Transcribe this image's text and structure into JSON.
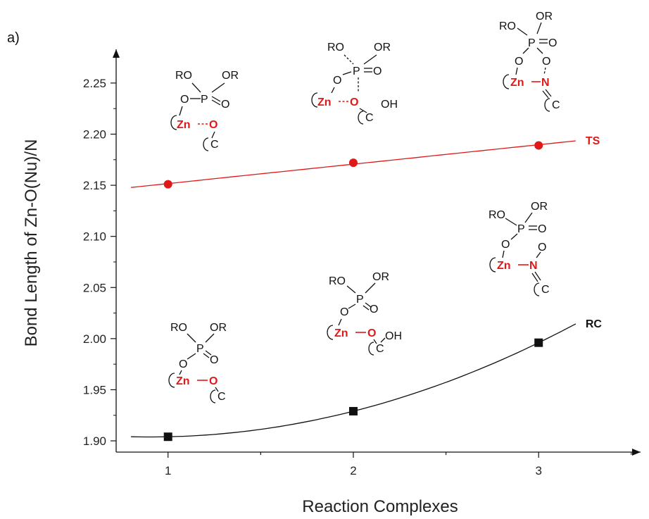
{
  "panel_label": "a)",
  "chart_data": {
    "type": "scatter",
    "xlabel": "Reaction Complexes",
    "ylabel": "Bond Length of Zn-O(Nu)/N",
    "xlim": [
      0.72,
      3.55
    ],
    "ylim": [
      1.889,
      2.283
    ],
    "x_ticks": [
      "1",
      "2",
      "3"
    ],
    "y_ticks": [
      "1.90",
      "1.95",
      "2.00",
      "2.05",
      "2.10",
      "2.15",
      "2.20",
      "2.25"
    ],
    "series": [
      {
        "name": "TS",
        "color": "#e01818",
        "marker": "circle",
        "x": [
          1,
          2,
          3
        ],
        "y": [
          2.151,
          2.172,
          2.189
        ],
        "fit": "linear",
        "fit_range": [
          0.8,
          3.2
        ]
      },
      {
        "name": "RC",
        "color": "#111111",
        "marker": "square",
        "x": [
          1,
          2,
          3
        ],
        "y": [
          1.904,
          1.929,
          1.996
        ],
        "fit": "quadratic",
        "fit_range": [
          0.8,
          3.2
        ]
      }
    ]
  },
  "structures": {
    "ts1": {
      "ro": "RO",
      "or": "OR",
      "p": "P",
      "o_top": "O",
      "o_left": "O",
      "zn": "Zn",
      "o_nu": "O",
      "c": "C"
    },
    "ts2": {
      "ro": "RO",
      "or": "OR",
      "p": "P",
      "o_top": "O",
      "o_left": "O",
      "zn": "Zn",
      "o_nu": "O",
      "c": "C",
      "oh": "OH"
    },
    "ts3": {
      "ro": "RO",
      "or": "OR",
      "p": "P",
      "o_top": "O",
      "o_left": "O",
      "o_right": "O",
      "zn": "Zn",
      "n": "N",
      "c": "C"
    },
    "rc1": {
      "ro": "RO",
      "or": "OR",
      "p": "P",
      "o_top": "O",
      "o_left": "O",
      "zn": "Zn",
      "o_nu": "O",
      "c": "C"
    },
    "rc2": {
      "ro": "RO",
      "or": "OR",
      "p": "P",
      "o_top": "O",
      "o_left": "O",
      "zn": "Zn",
      "o_nu": "O",
      "c": "C",
      "oh": "OH"
    },
    "rc3": {
      "ro": "RO",
      "or": "OR",
      "p": "P",
      "o_top": "O",
      "o_left": "O",
      "zn": "Zn",
      "n": "N",
      "o_n": "O",
      "c": "C"
    }
  }
}
